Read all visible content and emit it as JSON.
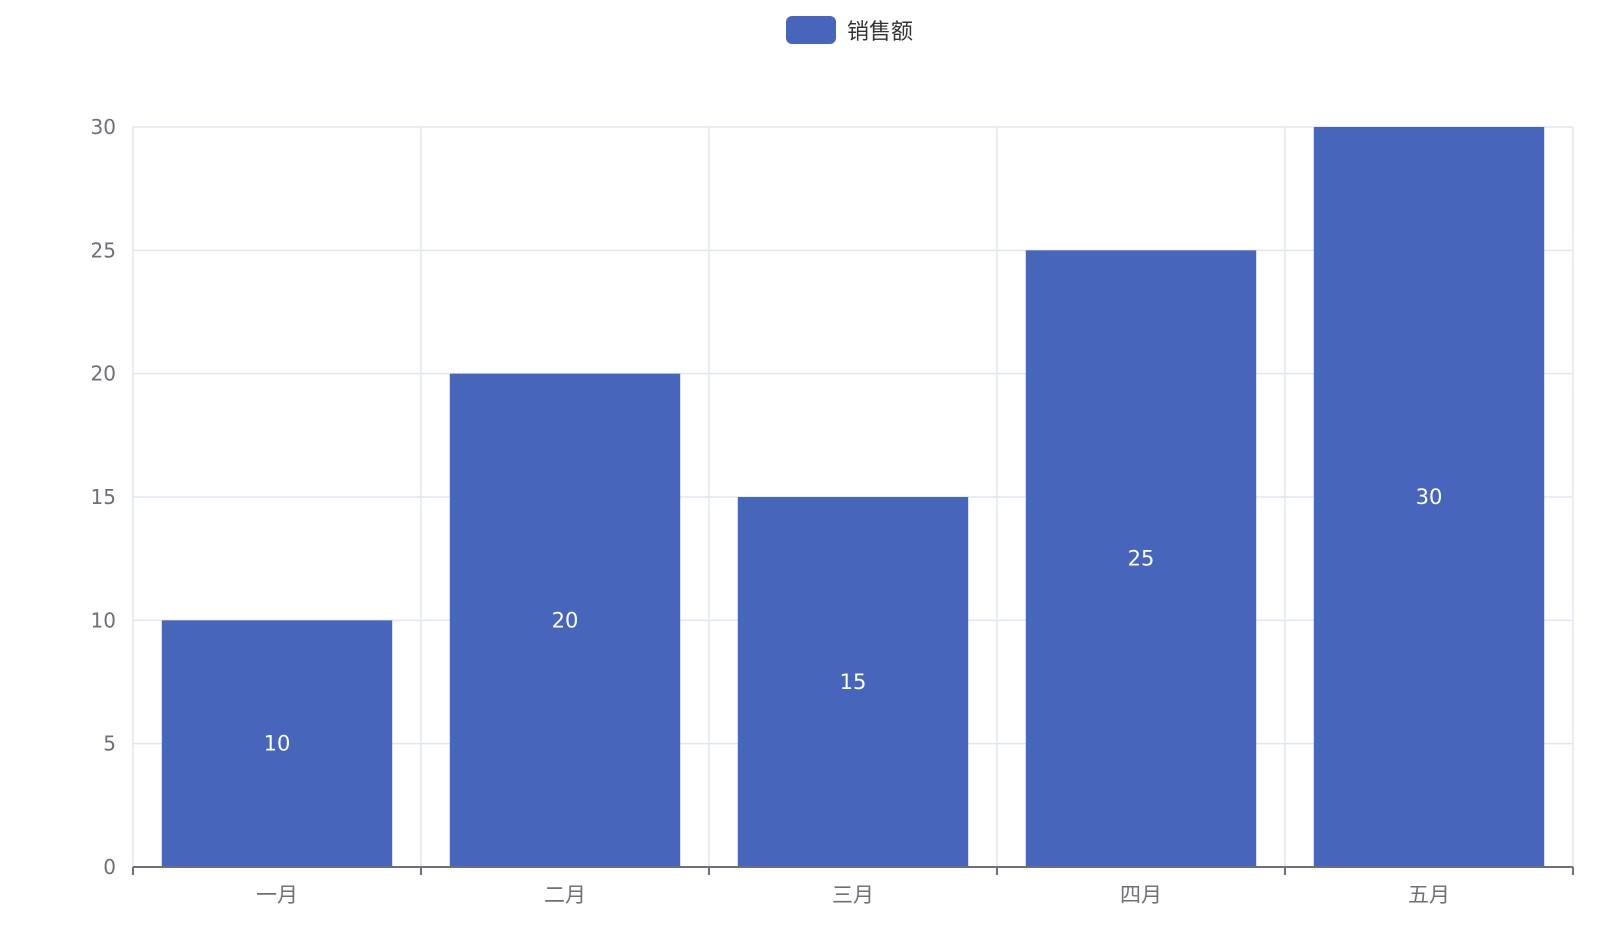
{
  "chart_data": {
    "type": "bar",
    "categories": [
      "一月",
      "二月",
      "三月",
      "四月",
      "五月"
    ],
    "series": [
      {
        "name": "销售额",
        "values": [
          10,
          20,
          15,
          25,
          30
        ],
        "color": "#4765BA"
      }
    ],
    "ylim": [
      0,
      30
    ],
    "yticks": [
      0,
      5,
      10,
      15,
      20,
      25,
      30
    ],
    "grid": true,
    "data_labels": "inside-center",
    "legend_position": "top-center"
  }
}
